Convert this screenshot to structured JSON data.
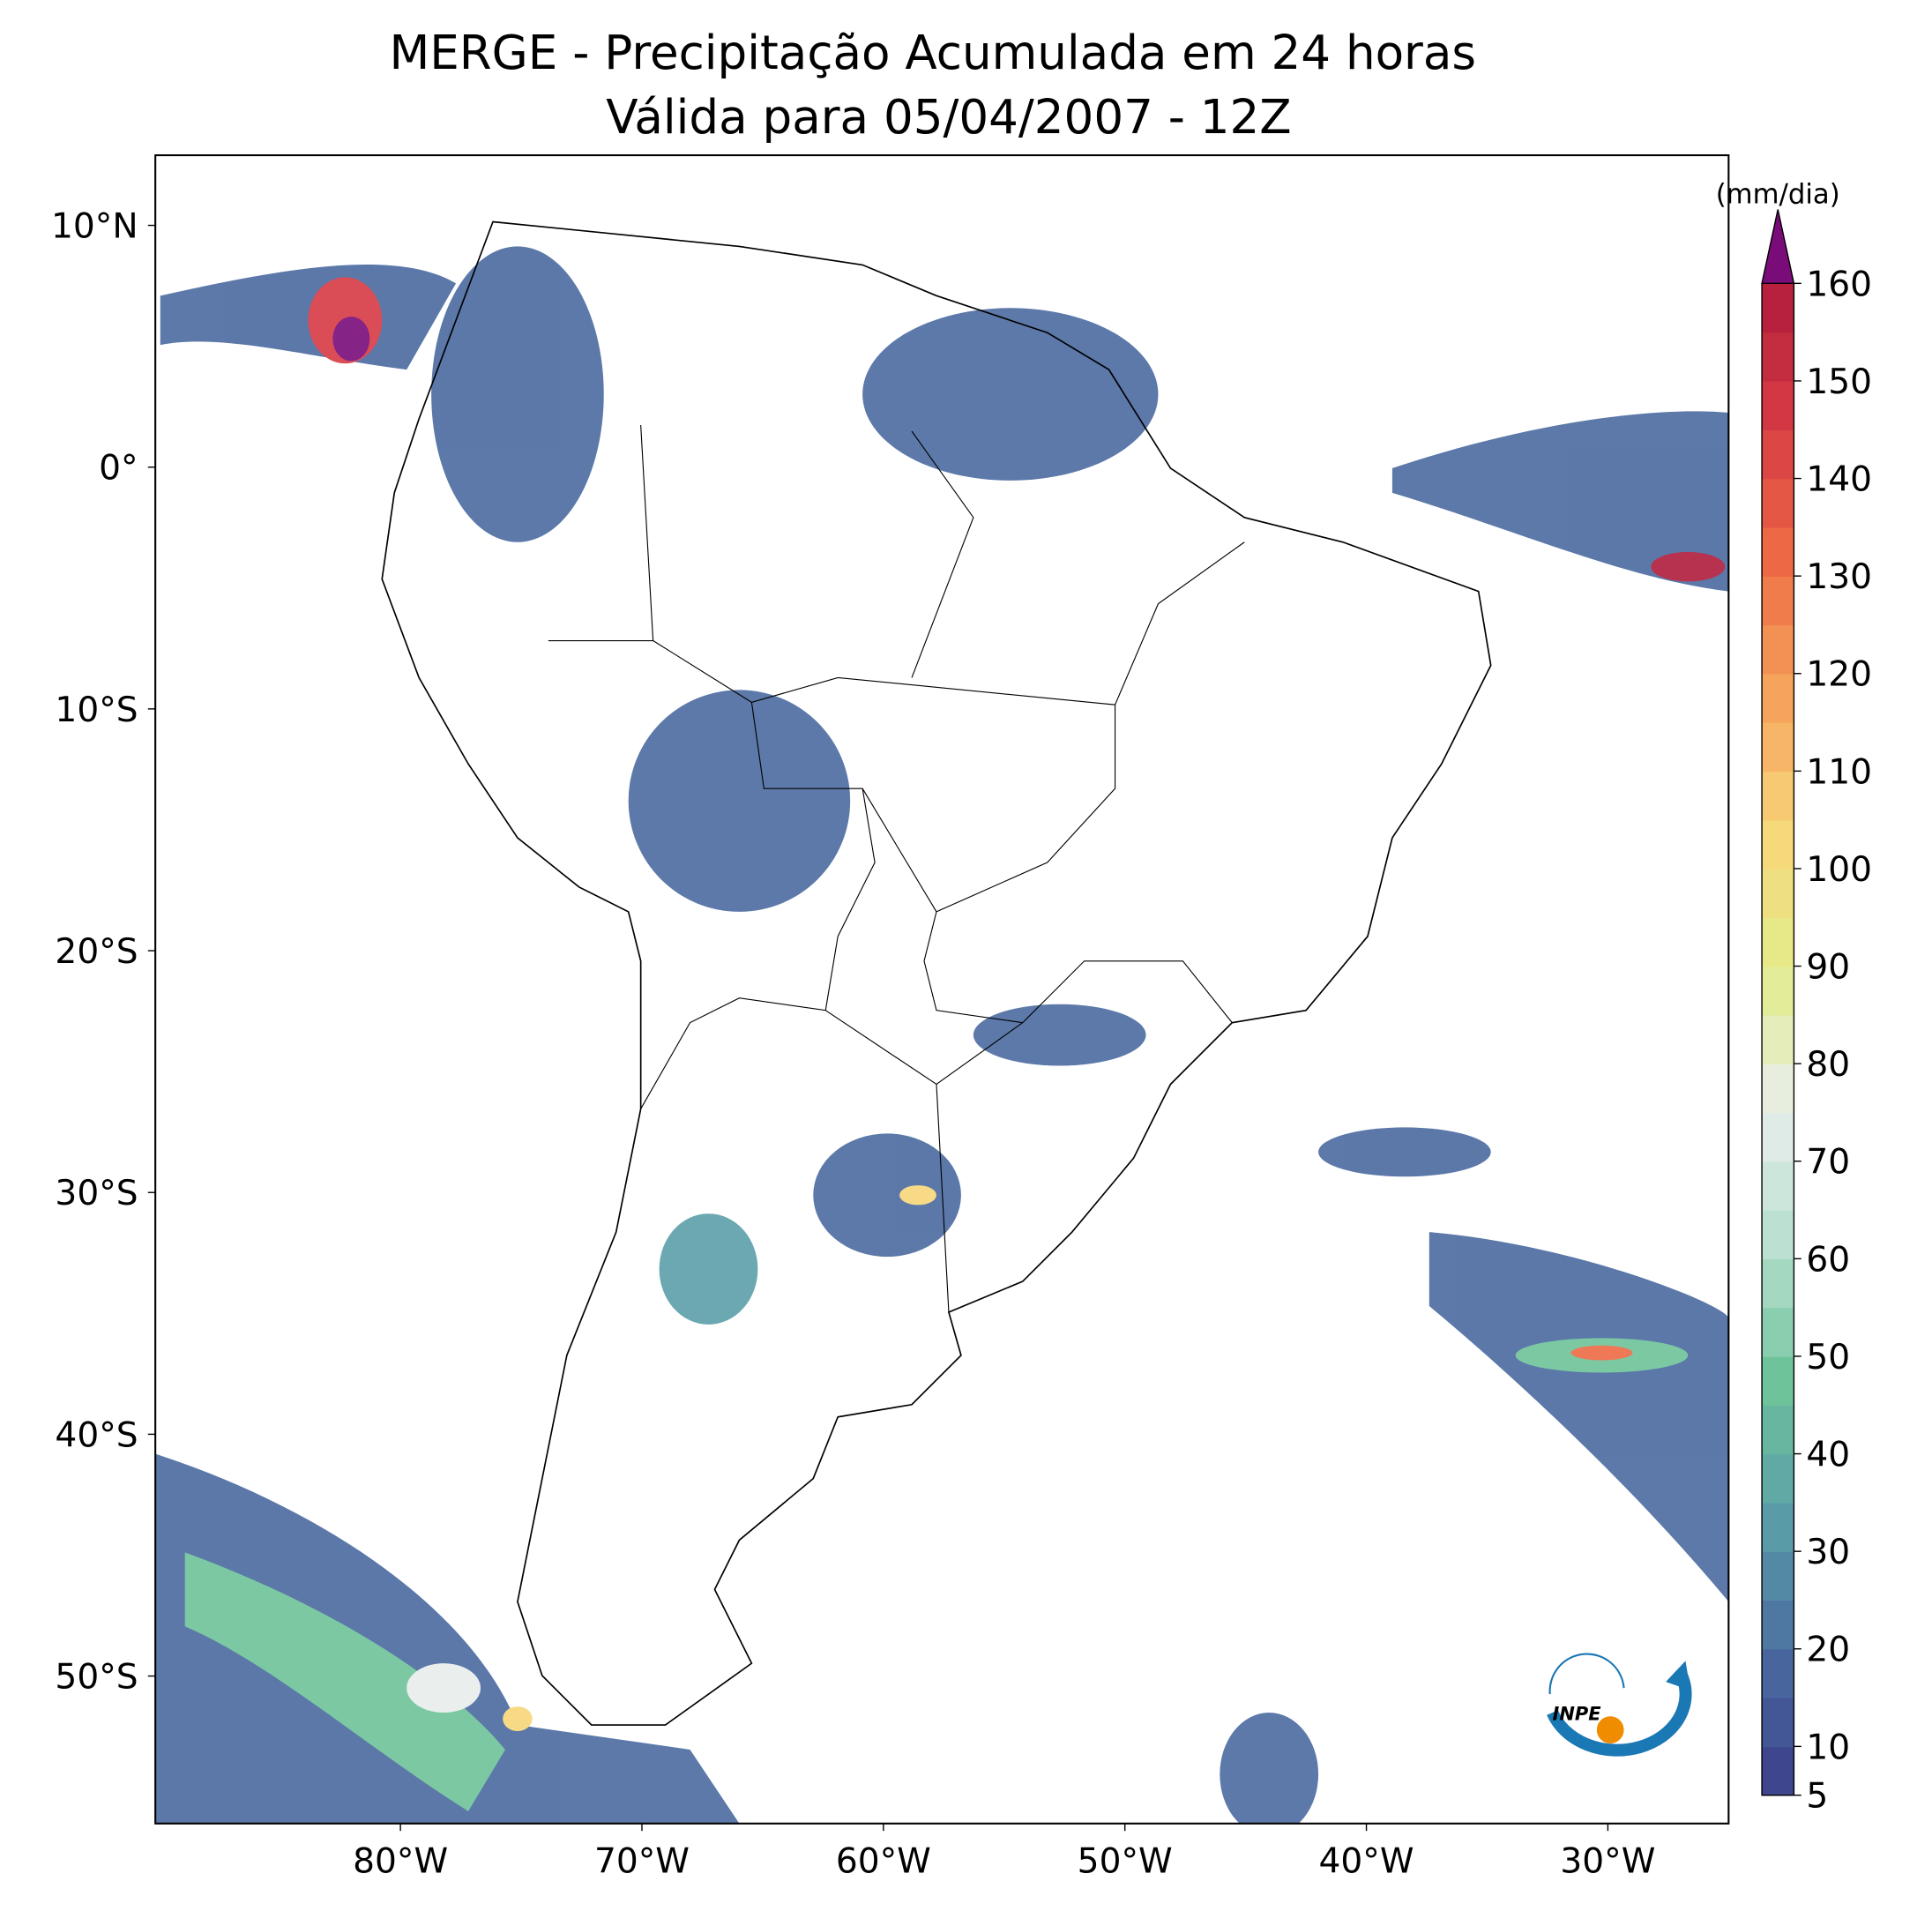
{
  "map": {
    "title": [
      "MERGE - Precipitação Acumulada em 24 horas",
      "Válida para 05/04/2007 - 12Z"
    ],
    "lon_range": [
      -90.15,
      -25
    ],
    "lat_range": [
      12.9,
      -56.1
    ],
    "lon_ticks": [
      {
        "value": -80,
        "label": "80°W"
      },
      {
        "value": -70,
        "label": "70°W"
      },
      {
        "value": -60,
        "label": "60°W"
      },
      {
        "value": -50,
        "label": "50°W"
      },
      {
        "value": -40,
        "label": "40°W"
      },
      {
        "value": -30,
        "label": "30°W"
      }
    ],
    "lat_ticks": [
      {
        "value": 10,
        "label": "10°N"
      },
      {
        "value": 0,
        "label": "0°"
      },
      {
        "value": -10,
        "label": "10°S"
      },
      {
        "value": -20,
        "label": "20°S"
      },
      {
        "value": -30,
        "label": "30°S"
      },
      {
        "value": -40,
        "label": "40°S"
      },
      {
        "value": -50,
        "label": "50°S"
      }
    ],
    "colorbar": {
      "unit": "(mm/dia)",
      "range": [
        5,
        160
      ],
      "step": 5,
      "ticks": [
        5,
        10,
        20,
        30,
        40,
        50,
        60,
        70,
        80,
        90,
        100,
        110,
        120,
        130,
        140,
        150,
        160
      ],
      "colors": [
        "#3b3f8a",
        "#4a6aa0",
        "#5b9ea8",
        "#6ec39a",
        "#b8e0d0",
        "#e8eeec",
        "#e2ec8a",
        "#f8d77a",
        "#f6a35c",
        "#ee6a44",
        "#d63a44",
        "#b01c3c"
      ],
      "extend_color": "#7a0c7a"
    },
    "logo": "INPE"
  }
}
